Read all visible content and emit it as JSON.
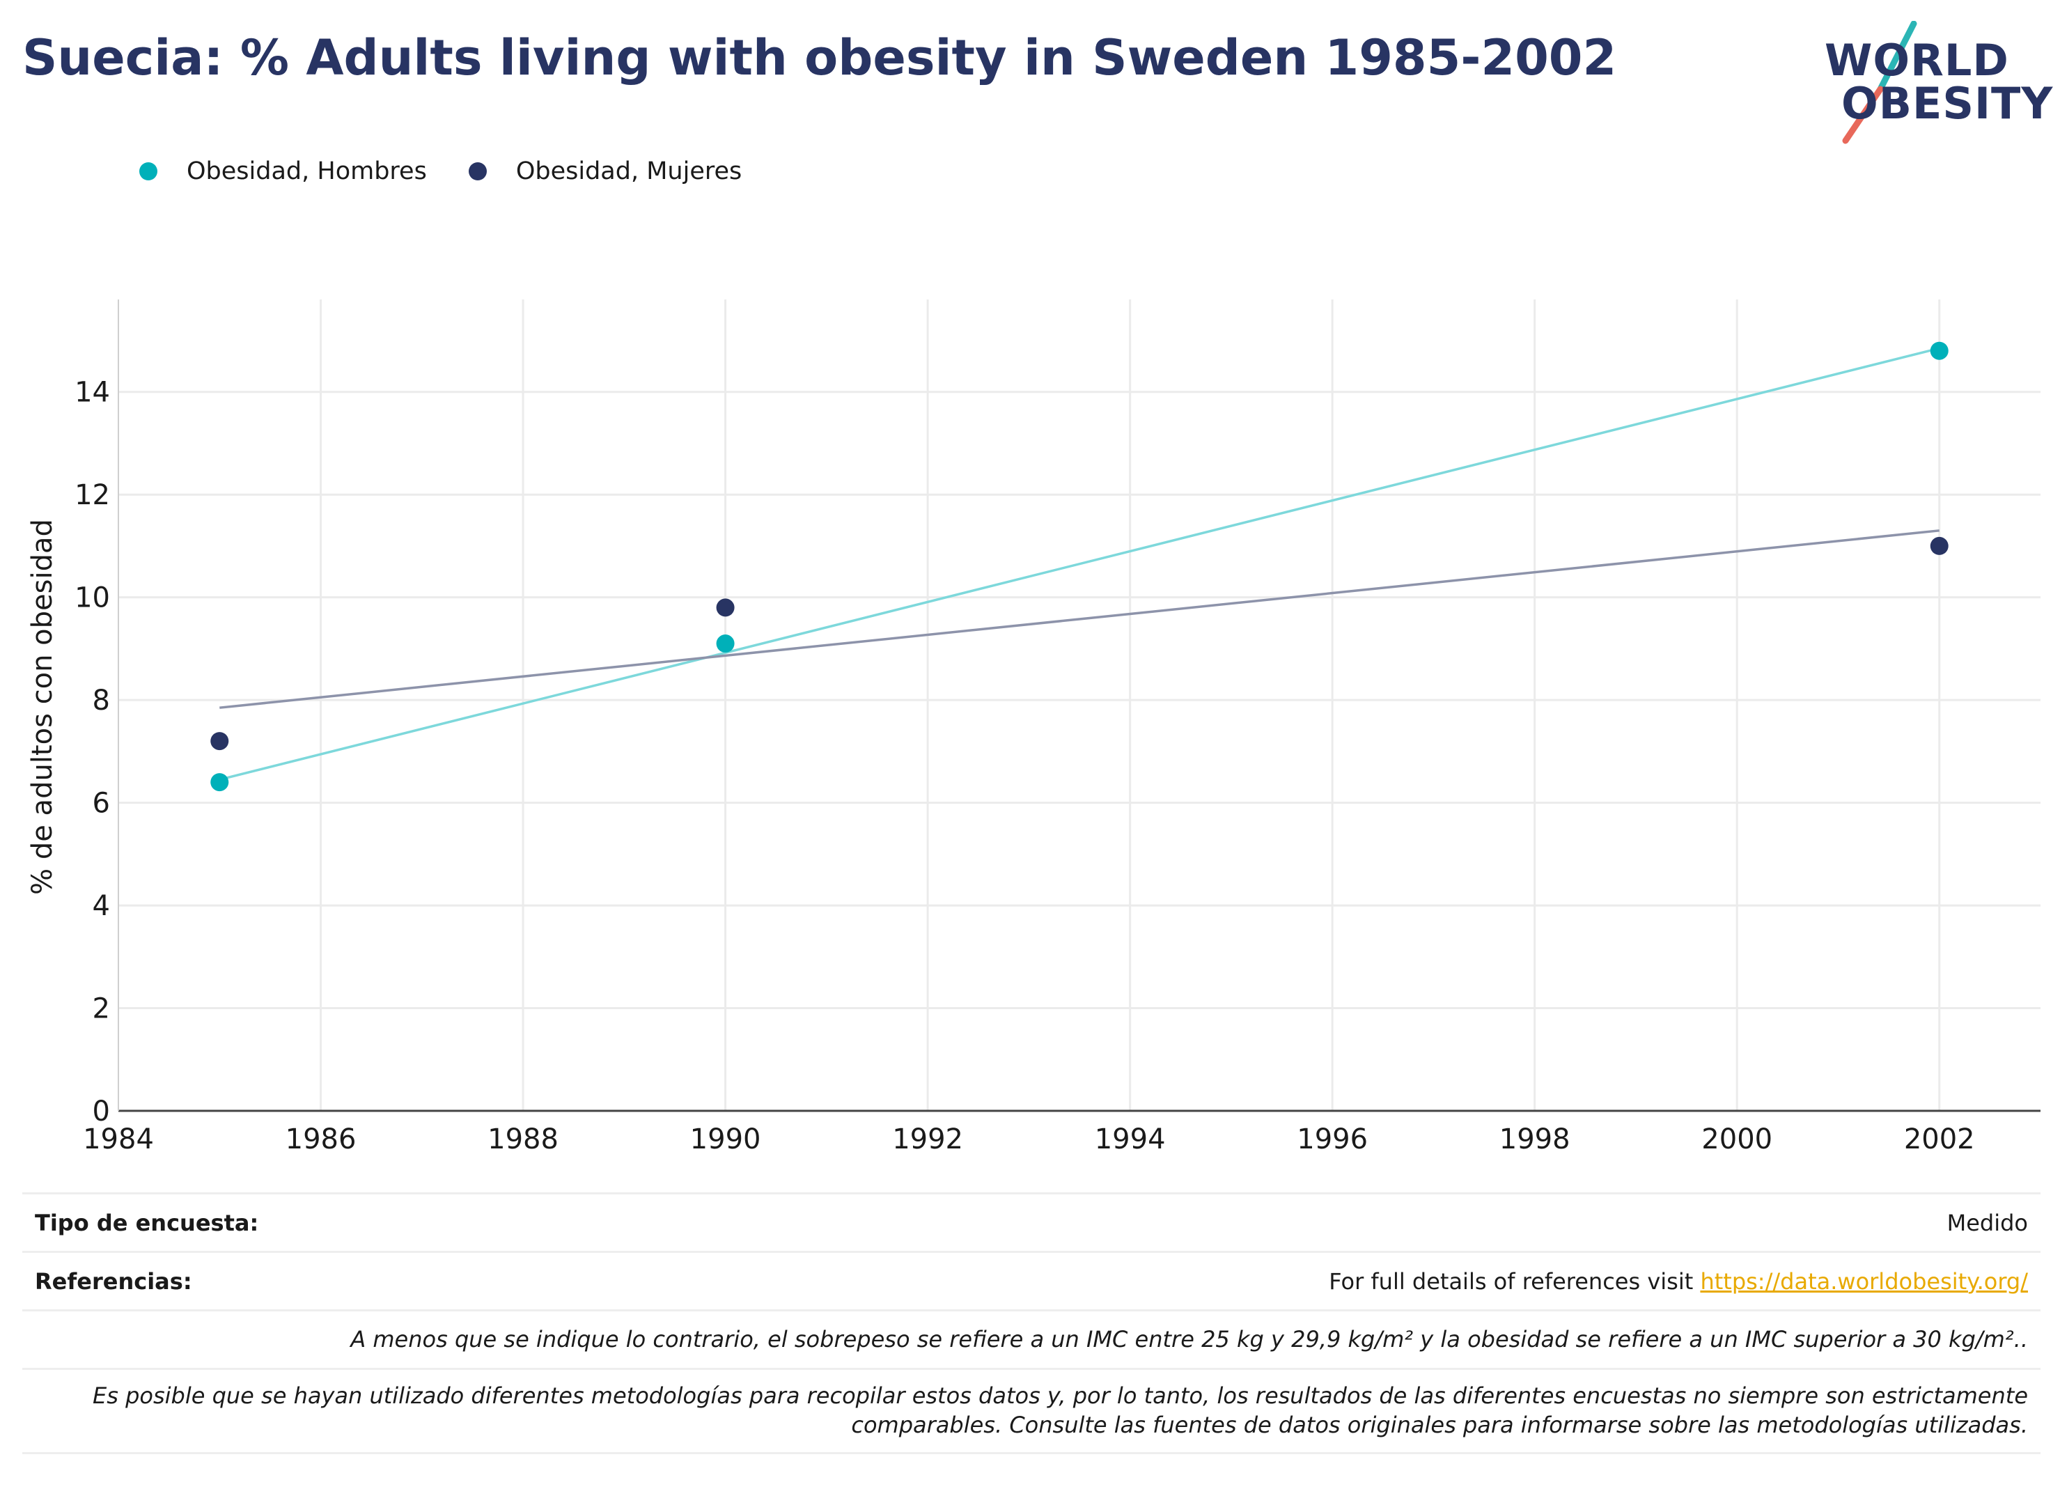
{
  "header": {
    "title": "Suecia: % Adults living with obesity in Sweden 1985-2002",
    "logo_line1": "WORLD",
    "logo_line2": "OBESITY"
  },
  "legend": [
    {
      "label": "Obesidad, Hombres",
      "color": "#00b0b9"
    },
    {
      "label": "Obesidad, Mujeres",
      "color": "#283463"
    }
  ],
  "chart_data": {
    "type": "scatter",
    "title": "",
    "xlabel": "",
    "ylabel": "% de adultos con obesidad",
    "xlim": [
      1984,
      2003
    ],
    "ylim": [
      0,
      15.8
    ],
    "x_ticks": [
      "1984",
      "1986",
      "1988",
      "1990",
      "1992",
      "1994",
      "1996",
      "1998",
      "2000",
      "2002"
    ],
    "y_ticks": [
      "0",
      "2",
      "4",
      "6",
      "8",
      "10",
      "12",
      "14"
    ],
    "grid": true,
    "legend_position": "top-left",
    "series": [
      {
        "name": "Obesidad, Hombres",
        "color": "#00b0b9",
        "x": [
          1985,
          1990,
          2002
        ],
        "y": [
          6.4,
          9.1,
          14.8
        ],
        "trend": {
          "color": "#7dd8db",
          "x": [
            1985,
            2002
          ],
          "y": [
            6.45,
            14.85
          ]
        }
      },
      {
        "name": "Obesidad, Mujeres",
        "color": "#283463",
        "x": [
          1985,
          1990,
          2002
        ],
        "y": [
          7.2,
          9.8,
          11.0
        ],
        "trend": {
          "color": "#8d93aa",
          "x": [
            1985,
            2002
          ],
          "y": [
            7.85,
            11.3
          ]
        }
      }
    ]
  },
  "footer": {
    "survey_label": "Tipo de encuesta:",
    "survey_value": "Medido",
    "refs_label": "Referencias:",
    "refs_text": "For full details of references visit ",
    "refs_link": "https://data.worldobesity.org/",
    "note1": "A menos que se indique lo contrario, el sobrepeso se refiere a un IMC entre 25 kg y 29,9 kg/m² y la obesidad se refiere a un IMC superior a 30 kg/m²..",
    "note2": "Es posible que se hayan utilizado diferentes metodologías para recopilar estos datos y, por lo tanto, los resultados de las diferentes encuestas no siempre son estrictamente comparables. Consulte las fuentes de datos originales para informarse sobre las metodologías utilizadas."
  }
}
